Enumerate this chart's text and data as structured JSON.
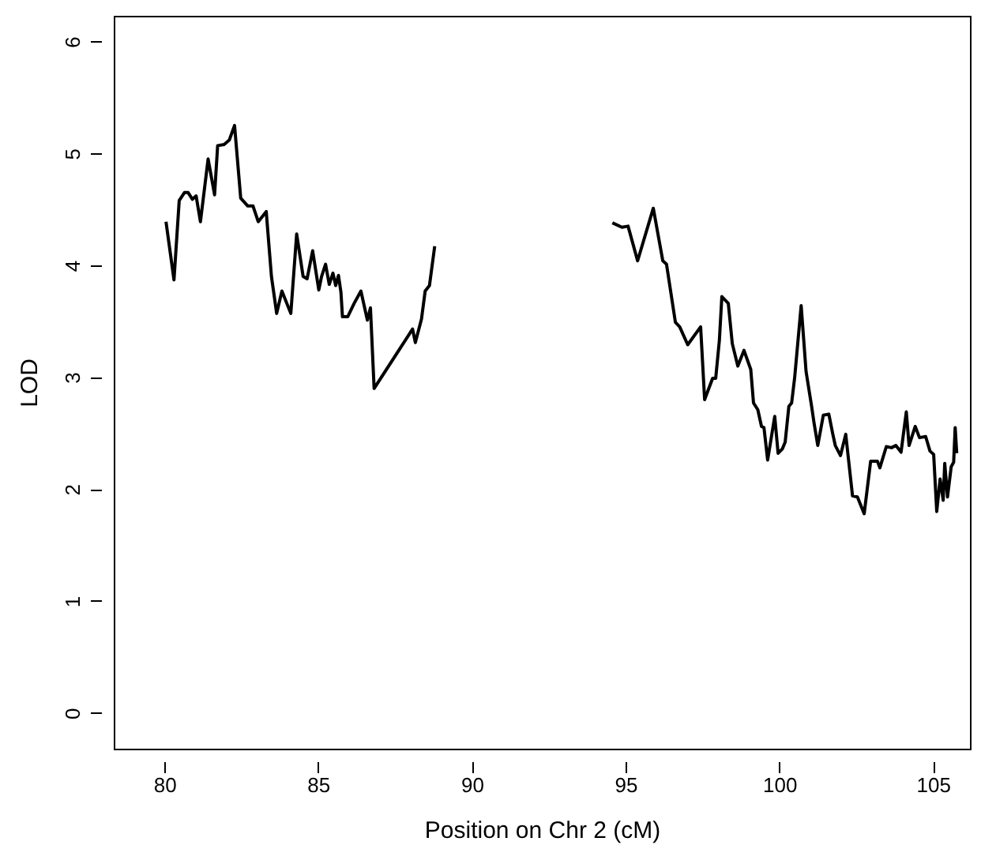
{
  "chart_data": {
    "type": "line",
    "xlabel": "Position on Chr 2 (cM)",
    "ylabel": "LOD",
    "xlim": [
      78.35,
      106.2
    ],
    "ylim": [
      -0.32,
      6.23
    ],
    "xticks": [
      80,
      85,
      90,
      95,
      100,
      105
    ],
    "yticks": [
      0,
      1,
      2,
      3,
      4,
      5,
      6
    ],
    "grid": false,
    "marker": "none",
    "line_style": "solid",
    "series": [
      {
        "color": "#000000",
        "x": [
          80.05,
          80.31,
          80.48,
          80.65,
          80.77,
          80.91,
          81.03,
          81.17,
          81.42,
          81.63,
          81.73,
          81.94,
          82.11,
          82.28,
          82.48,
          82.71,
          82.88,
          83.05,
          83.31,
          83.48,
          83.65,
          83.82,
          84.11,
          84.3,
          84.51,
          84.64,
          84.82,
          85.02,
          85.11,
          85.24,
          85.36,
          85.48,
          85.57,
          85.66,
          85.74,
          85.79,
          85.96,
          86.17,
          86.39,
          86.6,
          86.7,
          86.82,
          88.07,
          88.16,
          88.36,
          88.48,
          88.62,
          88.79
        ],
        "values": [
          4.39,
          3.87,
          4.58,
          4.65,
          4.65,
          4.59,
          4.62,
          4.39,
          4.95,
          4.63,
          5.07,
          5.08,
          5.12,
          5.25,
          4.6,
          4.53,
          4.53,
          4.39,
          4.48,
          3.9,
          3.57,
          3.77,
          3.57,
          4.28,
          3.9,
          3.88,
          4.13,
          3.78,
          3.9,
          4.01,
          3.83,
          3.93,
          3.82,
          3.91,
          3.76,
          3.54,
          3.54,
          3.66,
          3.77,
          3.51,
          3.62,
          2.9,
          3.43,
          3.31,
          3.52,
          3.77,
          3.82,
          4.17
        ]
      },
      {
        "color": "#000000",
        "x": [
          94.57,
          94.88,
          95.08,
          95.39,
          95.9,
          96.21,
          96.33,
          96.62,
          96.76,
          97.02,
          97.44,
          97.57,
          97.83,
          97.93,
          98.05,
          98.13,
          98.34,
          98.47,
          98.65,
          98.85,
          99.07,
          99.16,
          99.3,
          99.42,
          99.5,
          99.62,
          99.85,
          99.96,
          100.1,
          100.19,
          100.31,
          100.4,
          100.5,
          100.71,
          100.87,
          101.05,
          101.13,
          101.25,
          101.43,
          101.61,
          101.74,
          101.82,
          101.99,
          102.16,
          102.38,
          102.54,
          102.76,
          102.97,
          103.19,
          103.27,
          103.48,
          103.65,
          103.79,
          103.96,
          104.13,
          104.22,
          104.42,
          104.56,
          104.76,
          104.9,
          105.02,
          105.12,
          105.23,
          105.33,
          105.38,
          105.47,
          105.59,
          105.67,
          105.72,
          105.77
        ],
        "values": [
          4.38,
          4.34,
          4.35,
          4.04,
          4.51,
          4.04,
          4.01,
          3.49,
          3.45,
          3.29,
          3.45,
          2.8,
          2.99,
          2.99,
          3.33,
          3.72,
          3.66,
          3.3,
          3.1,
          3.24,
          3.07,
          2.77,
          2.71,
          2.56,
          2.55,
          2.26,
          2.65,
          2.32,
          2.36,
          2.42,
          2.74,
          2.77,
          3.0,
          3.64,
          3.05,
          2.74,
          2.59,
          2.39,
          2.66,
          2.67,
          2.49,
          2.39,
          2.3,
          2.49,
          1.94,
          1.93,
          1.78,
          2.25,
          2.25,
          2.19,
          2.38,
          2.37,
          2.39,
          2.33,
          2.69,
          2.39,
          2.56,
          2.46,
          2.47,
          2.34,
          2.31,
          1.8,
          2.09,
          1.9,
          2.23,
          1.93,
          2.2,
          2.24,
          2.55,
          2.32
        ]
      }
    ]
  }
}
